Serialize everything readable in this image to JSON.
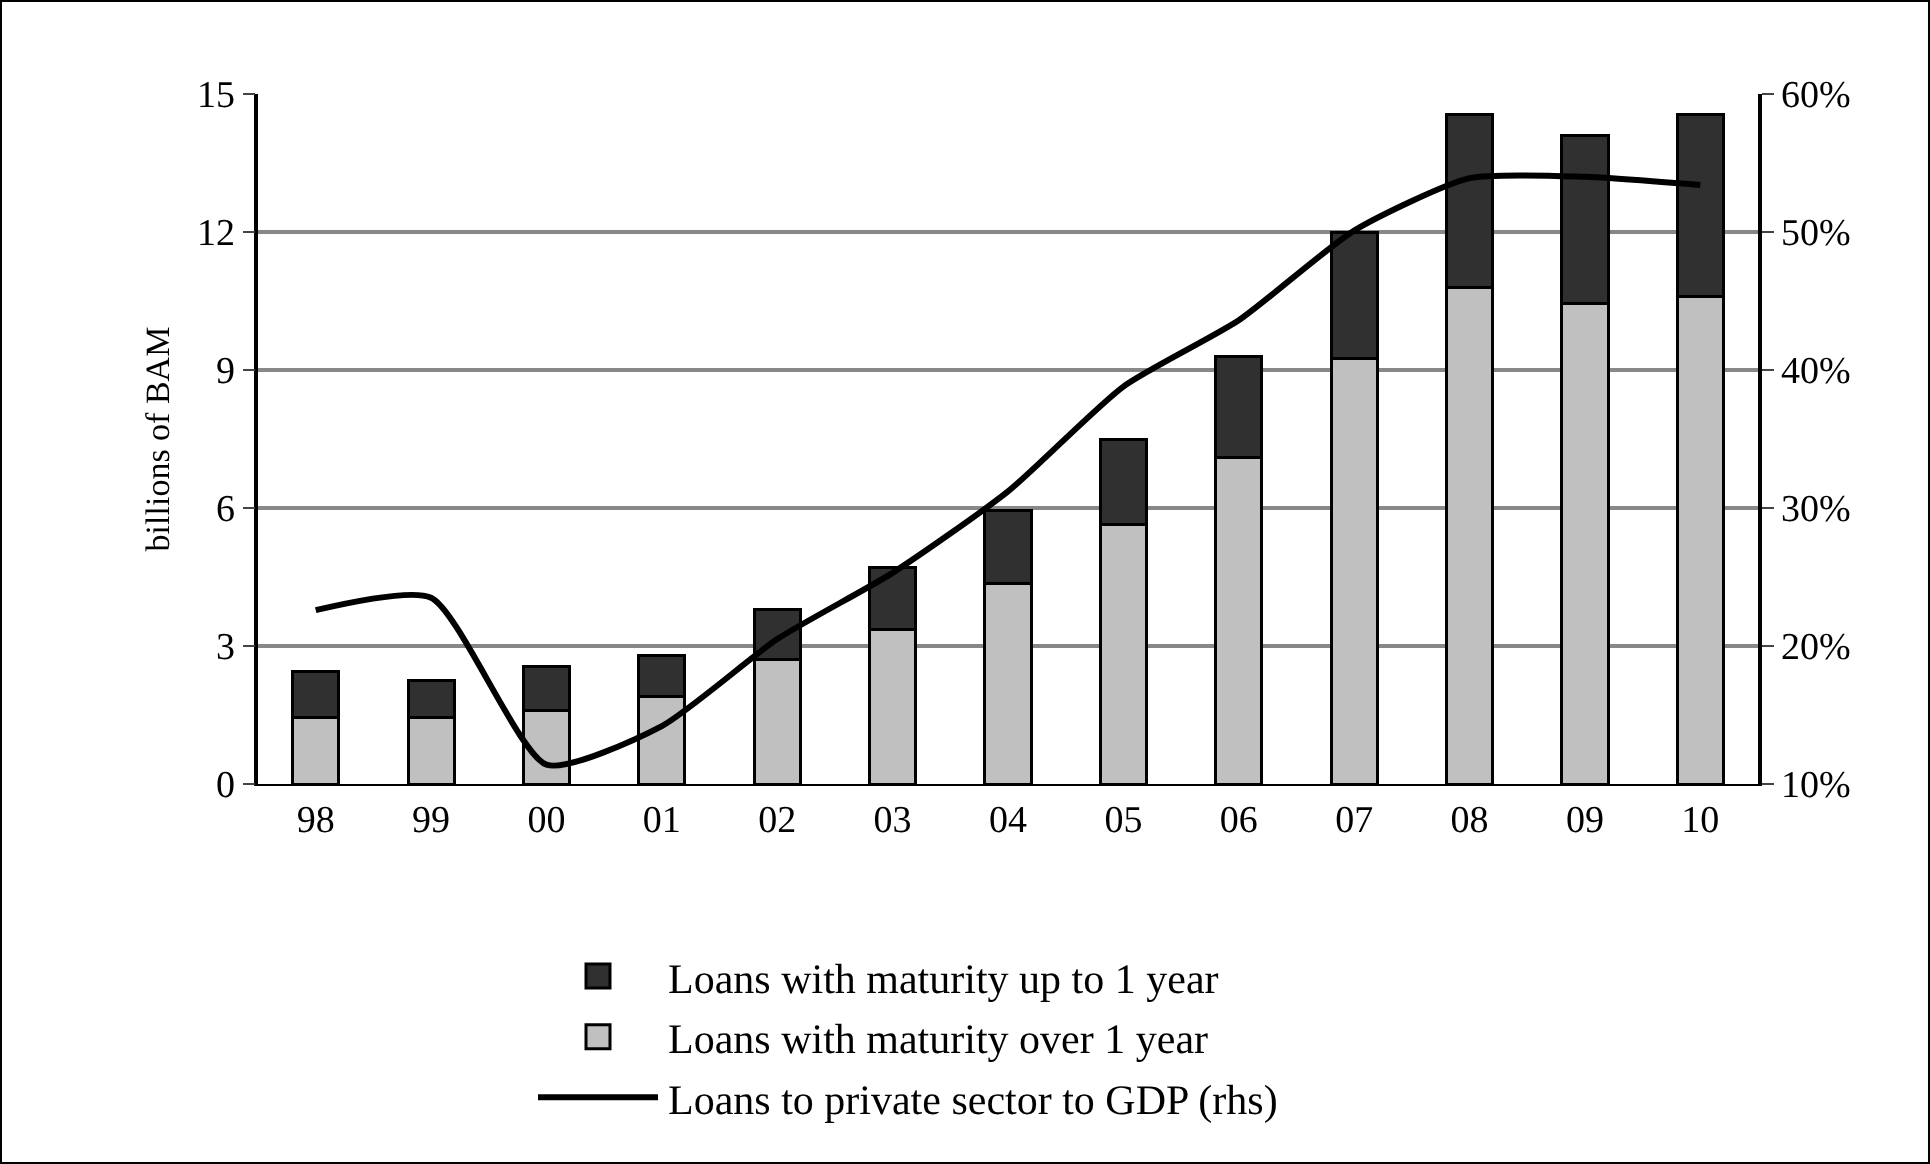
{
  "chart_data": {
    "type": "bar",
    "stacked": true,
    "ylabel": "billions of BAM",
    "categories": [
      "98",
      "99",
      "00",
      "01",
      "02",
      "03",
      "04",
      "05",
      "06",
      "07",
      "08",
      "09",
      "10"
    ],
    "series": [
      {
        "name": "Loans with maturity over 1 year",
        "color": "#c0c0c0",
        "values": [
          1.45,
          1.45,
          1.6,
          1.9,
          2.7,
          3.35,
          4.35,
          5.65,
          7.1,
          9.25,
          10.8,
          10.45,
          10.6
        ]
      },
      {
        "name": "Loans with maturity up to 1 year",
        "color": "#303030",
        "values": [
          1.0,
          0.8,
          0.95,
          0.9,
          1.1,
          1.35,
          1.6,
          1.85,
          2.2,
          2.75,
          3.75,
          3.65,
          3.95
        ]
      },
      {
        "name": "Loans to private sector to GDP (rhs)",
        "type": "line",
        "axis": "y2",
        "color": "#000000",
        "values": [
          22.6,
          23.5,
          11.4,
          14.2,
          20.5,
          25.3,
          31.2,
          38.8,
          43.6,
          50.1,
          53.9,
          54.0,
          53.4
        ]
      }
    ],
    "ylim": [
      0,
      15
    ],
    "yticks": [
      0,
      3,
      6,
      9,
      12,
      15
    ],
    "y2lim": [
      10,
      60
    ],
    "y2ticks": [
      {
        "value": 10,
        "label": "10%"
      },
      {
        "value": 20,
        "label": "20%"
      },
      {
        "value": 30,
        "label": "30%"
      },
      {
        "value": 40,
        "label": "40%"
      },
      {
        "value": 50,
        "label": "50%"
      },
      {
        "value": 60,
        "label": "60%"
      }
    ],
    "grid": "y",
    "legend": "bottom"
  }
}
